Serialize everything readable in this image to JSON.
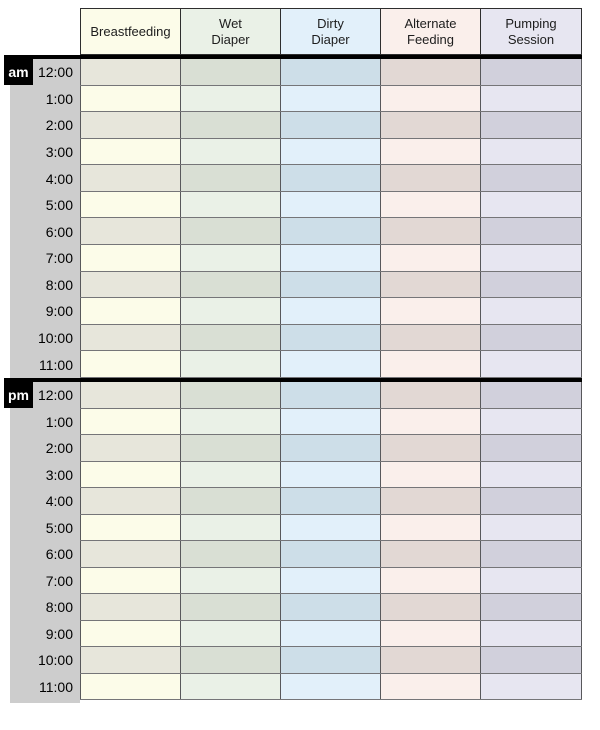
{
  "sheet": {
    "title": "baby-care-hourly-tracking-sheet",
    "columns": [
      {
        "id": "breastfeeding",
        "label": "Breastfeeding",
        "light": "#FCFCE9",
        "dark": "#E7E6DB"
      },
      {
        "id": "wet-diaper",
        "label": "Wet\nDiaper",
        "light": "#EAF1E7",
        "dark": "#D9DFD4"
      },
      {
        "id": "dirty-diaper",
        "label": "Dirty\nDiaper",
        "light": "#E2F0FA",
        "dark": "#CDDEE8"
      },
      {
        "id": "alternate-feeding",
        "label": "Alternate\nFeeding",
        "light": "#FAEFEB",
        "dark": "#E2D8D4"
      },
      {
        "id": "pumping-session",
        "label": "Pumping\nSession",
        "light": "#E7E6F1",
        "dark": "#D1D0DC"
      }
    ],
    "times": [
      "12:00",
      "1:00",
      "2:00",
      "3:00",
      "4:00",
      "5:00",
      "6:00",
      "7:00",
      "8:00",
      "9:00",
      "10:00",
      "11:00"
    ],
    "meridiem": {
      "am": "am",
      "pm": "pm"
    },
    "colors": {
      "page_bg": "#FFFFFF",
      "time_column_bg": "#CDCDCD",
      "divider": "#000000",
      "row_border": "#757578",
      "col_border": "#58585B",
      "header_border": "#2E2E2E",
      "meridiem_text": "#FFFFFF"
    }
  }
}
